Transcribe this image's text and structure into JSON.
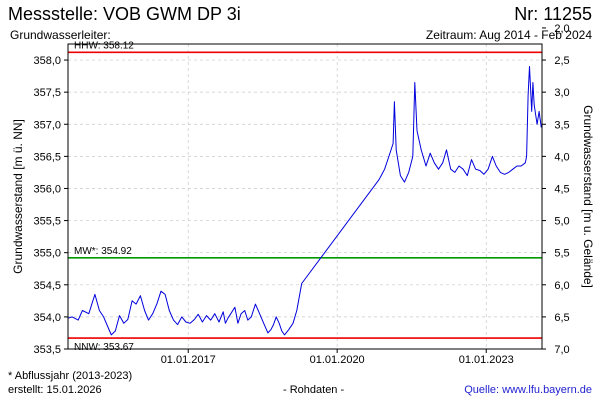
{
  "header": {
    "title": "Messstelle: VOB GWM DP 3i",
    "number": "Nr: 11255",
    "aquifer": "Grundwasserleiter:",
    "period": "Zeitraum: Aug 2014 - Feb 2024"
  },
  "footer": {
    "footnote": "* Abflussjahr (2013-2023)",
    "created": "erstellt:  15.01.2026",
    "raw_data": "- Rohdaten -",
    "source": "Quelle: www.lfu.bayern.de"
  },
  "colors": {
    "series": "#0000dd",
    "hhw": "#ee0000",
    "nnw": "#ee0000",
    "mw": "#009900",
    "grid": "#c8c8c8"
  },
  "chart_data": {
    "type": "line",
    "ylabel": "Grundwasserstand [m ü. NN]",
    "y2label": "Grundwasserstand [m u. Gelände]",
    "ylim": [
      353.5,
      358.25
    ],
    "xlim": [
      "2014-08-01",
      "2024-02-15"
    ],
    "y_ticks": [
      "353,5",
      "354,0",
      "354,5",
      "355,0",
      "355,5",
      "356,0",
      "356,5",
      "357,0",
      "357,5",
      "358,0"
    ],
    "y2_ticks": [
      "2,0",
      "2,5",
      "3,0",
      "3,5",
      "4,0",
      "4,5",
      "5,0",
      "5,5",
      "6,0",
      "6,5",
      "7,0"
    ],
    "x_ticks": [
      "01.01.2017",
      "01.01.2020",
      "01.01.2023"
    ],
    "grid": true,
    "reference_lines": [
      {
        "label": "HHW: 358.12",
        "value": 358.12
      },
      {
        "label": "MW*: 354.92",
        "value": 354.92
      },
      {
        "label": "NNW: 353.67",
        "value": 353.67
      }
    ],
    "series": [
      {
        "x": [
          "2014-08-01",
          "2014-09-01",
          "2014-10-15",
          "2014-11-15",
          "2015-01-01",
          "2015-02-15",
          "2015-03-20",
          "2015-04-20",
          "2015-05-20",
          "2015-06-15",
          "2015-07-15",
          "2015-08-15",
          "2015-09-15",
          "2015-10-15",
          "2015-11-15",
          "2015-12-15",
          "2016-01-15",
          "2016-02-15",
          "2016-03-15",
          "2016-04-15",
          "2016-05-15",
          "2016-06-15",
          "2016-07-15",
          "2016-08-15",
          "2016-09-15",
          "2016-10-15",
          "2016-11-15",
          "2016-12-15",
          "2017-01-15",
          "2017-02-15",
          "2017-03-15",
          "2017-04-15",
          "2017-05-15",
          "2017-06-15",
          "2017-07-15",
          "2017-08-15",
          "2017-09-15",
          "2017-10-01",
          "2017-10-20",
          "2017-11-10",
          "2017-11-25",
          "2017-12-10",
          "2018-01-01",
          "2018-01-25",
          "2018-02-20",
          "2018-03-15",
          "2018-04-10",
          "2018-05-10",
          "2018-06-10",
          "2018-07-10",
          "2018-08-10",
          "2018-09-01",
          "2018-09-20",
          "2018-10-10",
          "2018-11-01",
          "2018-11-20",
          "2018-12-10",
          "2019-01-10",
          "2019-02-10",
          "2019-03-10",
          "2019-04-15",
          "2020-11-01",
          "2020-11-20",
          "2020-12-15",
          "2021-01-15",
          "2021-02-15",
          "2021-02-25",
          "2021-03-10",
          "2021-04-10",
          "2021-05-10",
          "2021-06-10",
          "2021-07-10",
          "2021-07-25",
          "2021-08-10",
          "2021-09-10",
          "2021-10-15",
          "2021-11-15",
          "2021-12-15",
          "2022-01-15",
          "2022-02-15",
          "2022-03-15",
          "2022-04-15",
          "2022-05-15",
          "2022-06-15",
          "2022-07-15",
          "2022-08-15",
          "2022-09-15",
          "2022-10-15",
          "2022-11-15",
          "2022-12-15",
          "2023-01-15",
          "2023-02-15",
          "2023-03-15",
          "2023-04-15",
          "2023-05-15",
          "2023-06-15",
          "2023-07-15",
          "2023-08-15",
          "2023-09-15",
          "2023-10-15",
          "2023-10-25",
          "2023-11-05",
          "2023-11-15",
          "2023-12-01",
          "2023-12-10",
          "2023-12-20",
          "2024-01-10",
          "2024-01-25",
          "2024-02-10"
        ],
        "y": [
          353.98,
          354.0,
          353.95,
          354.1,
          354.05,
          354.35,
          354.1,
          354.0,
          353.85,
          353.72,
          353.78,
          354.02,
          353.9,
          353.96,
          354.25,
          354.2,
          354.33,
          354.1,
          353.95,
          354.05,
          354.2,
          354.4,
          354.35,
          354.1,
          353.95,
          353.88,
          354.0,
          353.92,
          353.9,
          353.96,
          354.04,
          353.92,
          354.02,
          353.95,
          354.05,
          353.92,
          354.08,
          353.9,
          353.98,
          354.05,
          354.1,
          354.15,
          353.9,
          354.05,
          354.1,
          353.95,
          354.0,
          354.2,
          354.05,
          353.9,
          353.75,
          353.8,
          353.88,
          354.0,
          353.9,
          353.78,
          353.72,
          353.8,
          353.9,
          354.1,
          354.52,
          356.13,
          356.2,
          356.3,
          356.5,
          356.7,
          357.35,
          356.6,
          356.2,
          356.1,
          356.25,
          356.5,
          357.65,
          356.9,
          356.6,
          356.35,
          356.55,
          356.4,
          356.3,
          356.4,
          356.6,
          356.3,
          356.25,
          356.35,
          356.3,
          356.2,
          356.45,
          356.3,
          356.28,
          356.22,
          356.3,
          356.5,
          356.35,
          356.25,
          356.22,
          356.25,
          356.3,
          356.35,
          356.35,
          356.4,
          356.5,
          357.45,
          357.9,
          357.2,
          357.65,
          357.3,
          357.0,
          357.2,
          356.95
        ]
      }
    ]
  }
}
